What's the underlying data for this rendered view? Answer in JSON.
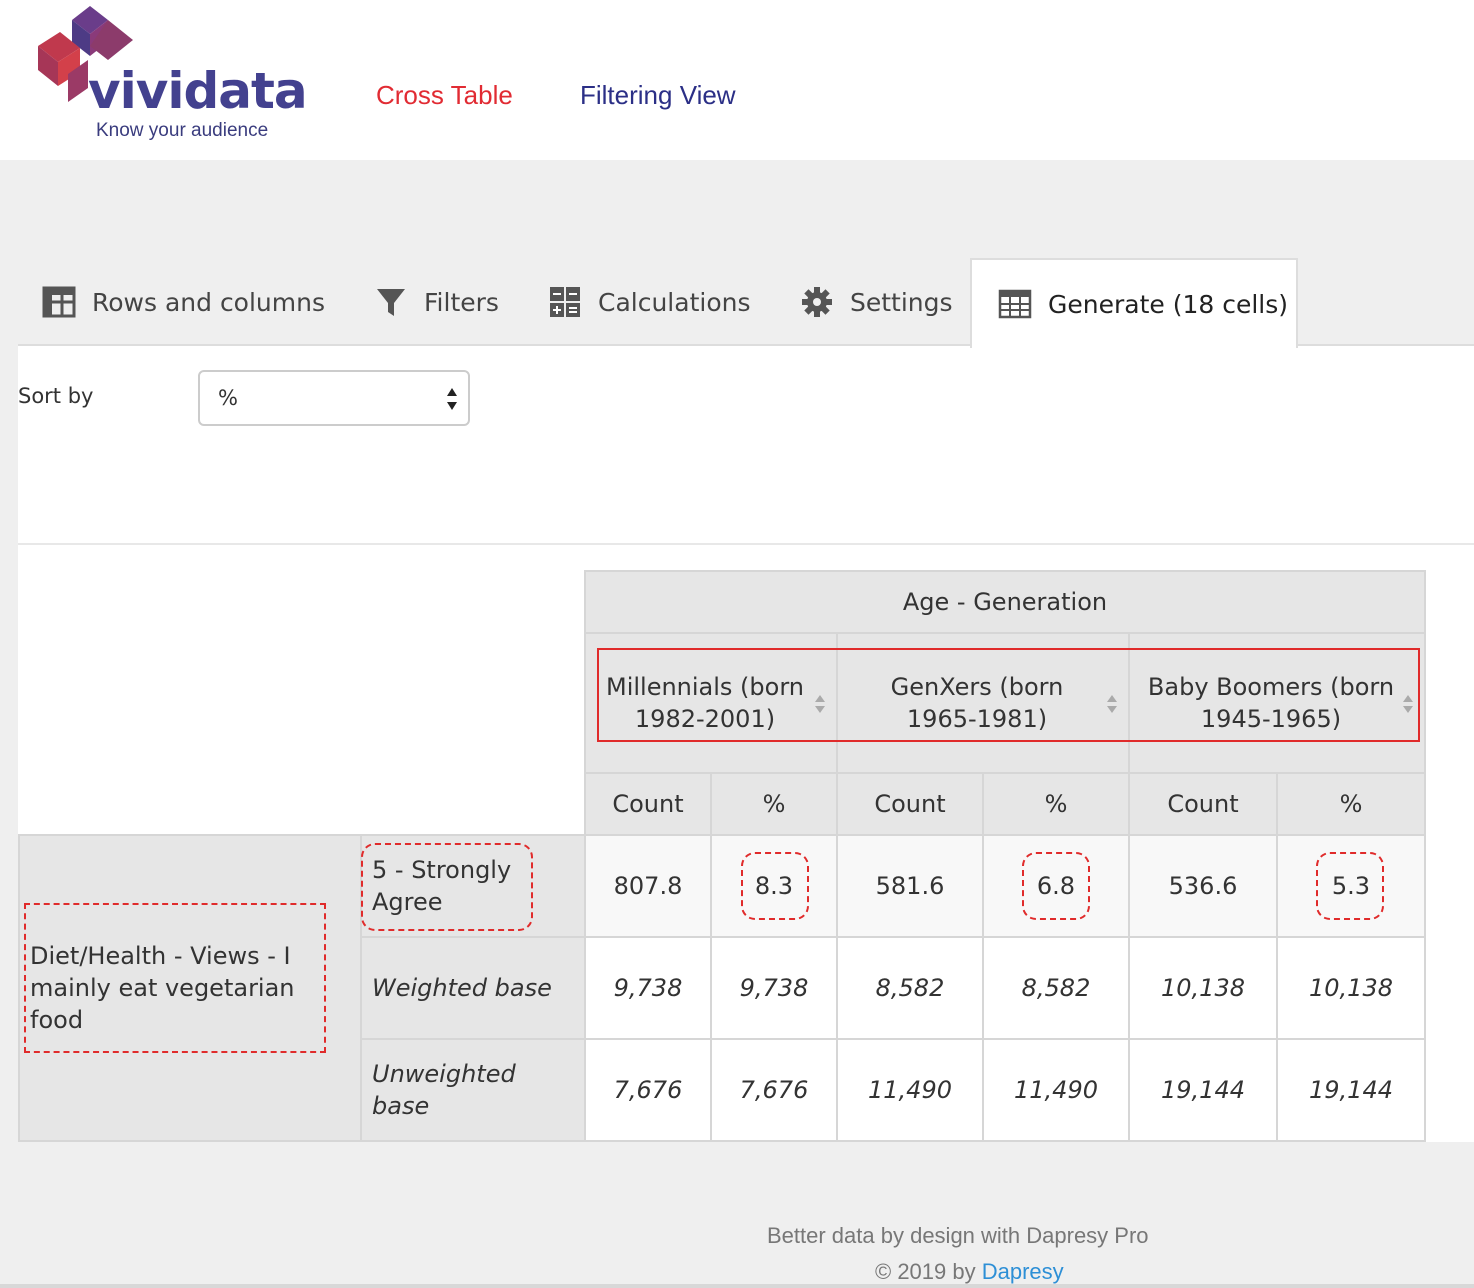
{
  "header": {
    "logo_text": "vividata",
    "logo_tagline": "Know your audience",
    "nav": [
      {
        "label": "Cross Table"
      },
      {
        "label": "Filtering View"
      }
    ]
  },
  "tabs": {
    "rows": "Rows and columns",
    "filters": "Filters",
    "calculations": "Calculations",
    "settings": "Settings",
    "generate": "Generate (18 cells)"
  },
  "sort": {
    "label": "Sort by",
    "value": "%"
  },
  "table": {
    "group_header": "Age - Generation",
    "columns": [
      {
        "line1": "Millennials (born",
        "line2": "1982-2001)"
      },
      {
        "line1": "GenXers (born",
        "line2": "1965-1981)"
      },
      {
        "line1": "Baby Boomers (born",
        "line2": "1945-1965)"
      }
    ],
    "subheaders": [
      "Count",
      "%",
      "Count",
      "%",
      "Count",
      "%"
    ],
    "row_variable": {
      "line1": "Diet/Health - Views - I",
      "line2": "mainly eat vegetarian",
      "line3": "food"
    },
    "rows": [
      {
        "label_line1": "5 - Strongly",
        "label_line2": "Agree",
        "values": [
          "807.8",
          "8.3",
          "581.6",
          "6.8",
          "536.6",
          "5.3"
        ]
      },
      {
        "label_line1": "Weighted base",
        "label_line2": "",
        "values": [
          "9,738",
          "9,738",
          "8,582",
          "8,582",
          "10,138",
          "10,138"
        ]
      },
      {
        "label_line1": "Unweighted",
        "label_line2": "base",
        "values": [
          "7,676",
          "7,676",
          "11,490",
          "11,490",
          "19,144",
          "19,144"
        ]
      }
    ]
  },
  "footer": {
    "line1": "Better data by design with Dapresy Pro",
    "line2_prefix": "© 2019 by ",
    "line2_link": "Dapresy"
  },
  "colors": {
    "brand_purple": "#43418f",
    "brand_red": "#e12b33",
    "annotation_red": "#e02b2b",
    "link_blue": "#2d8fd6"
  }
}
